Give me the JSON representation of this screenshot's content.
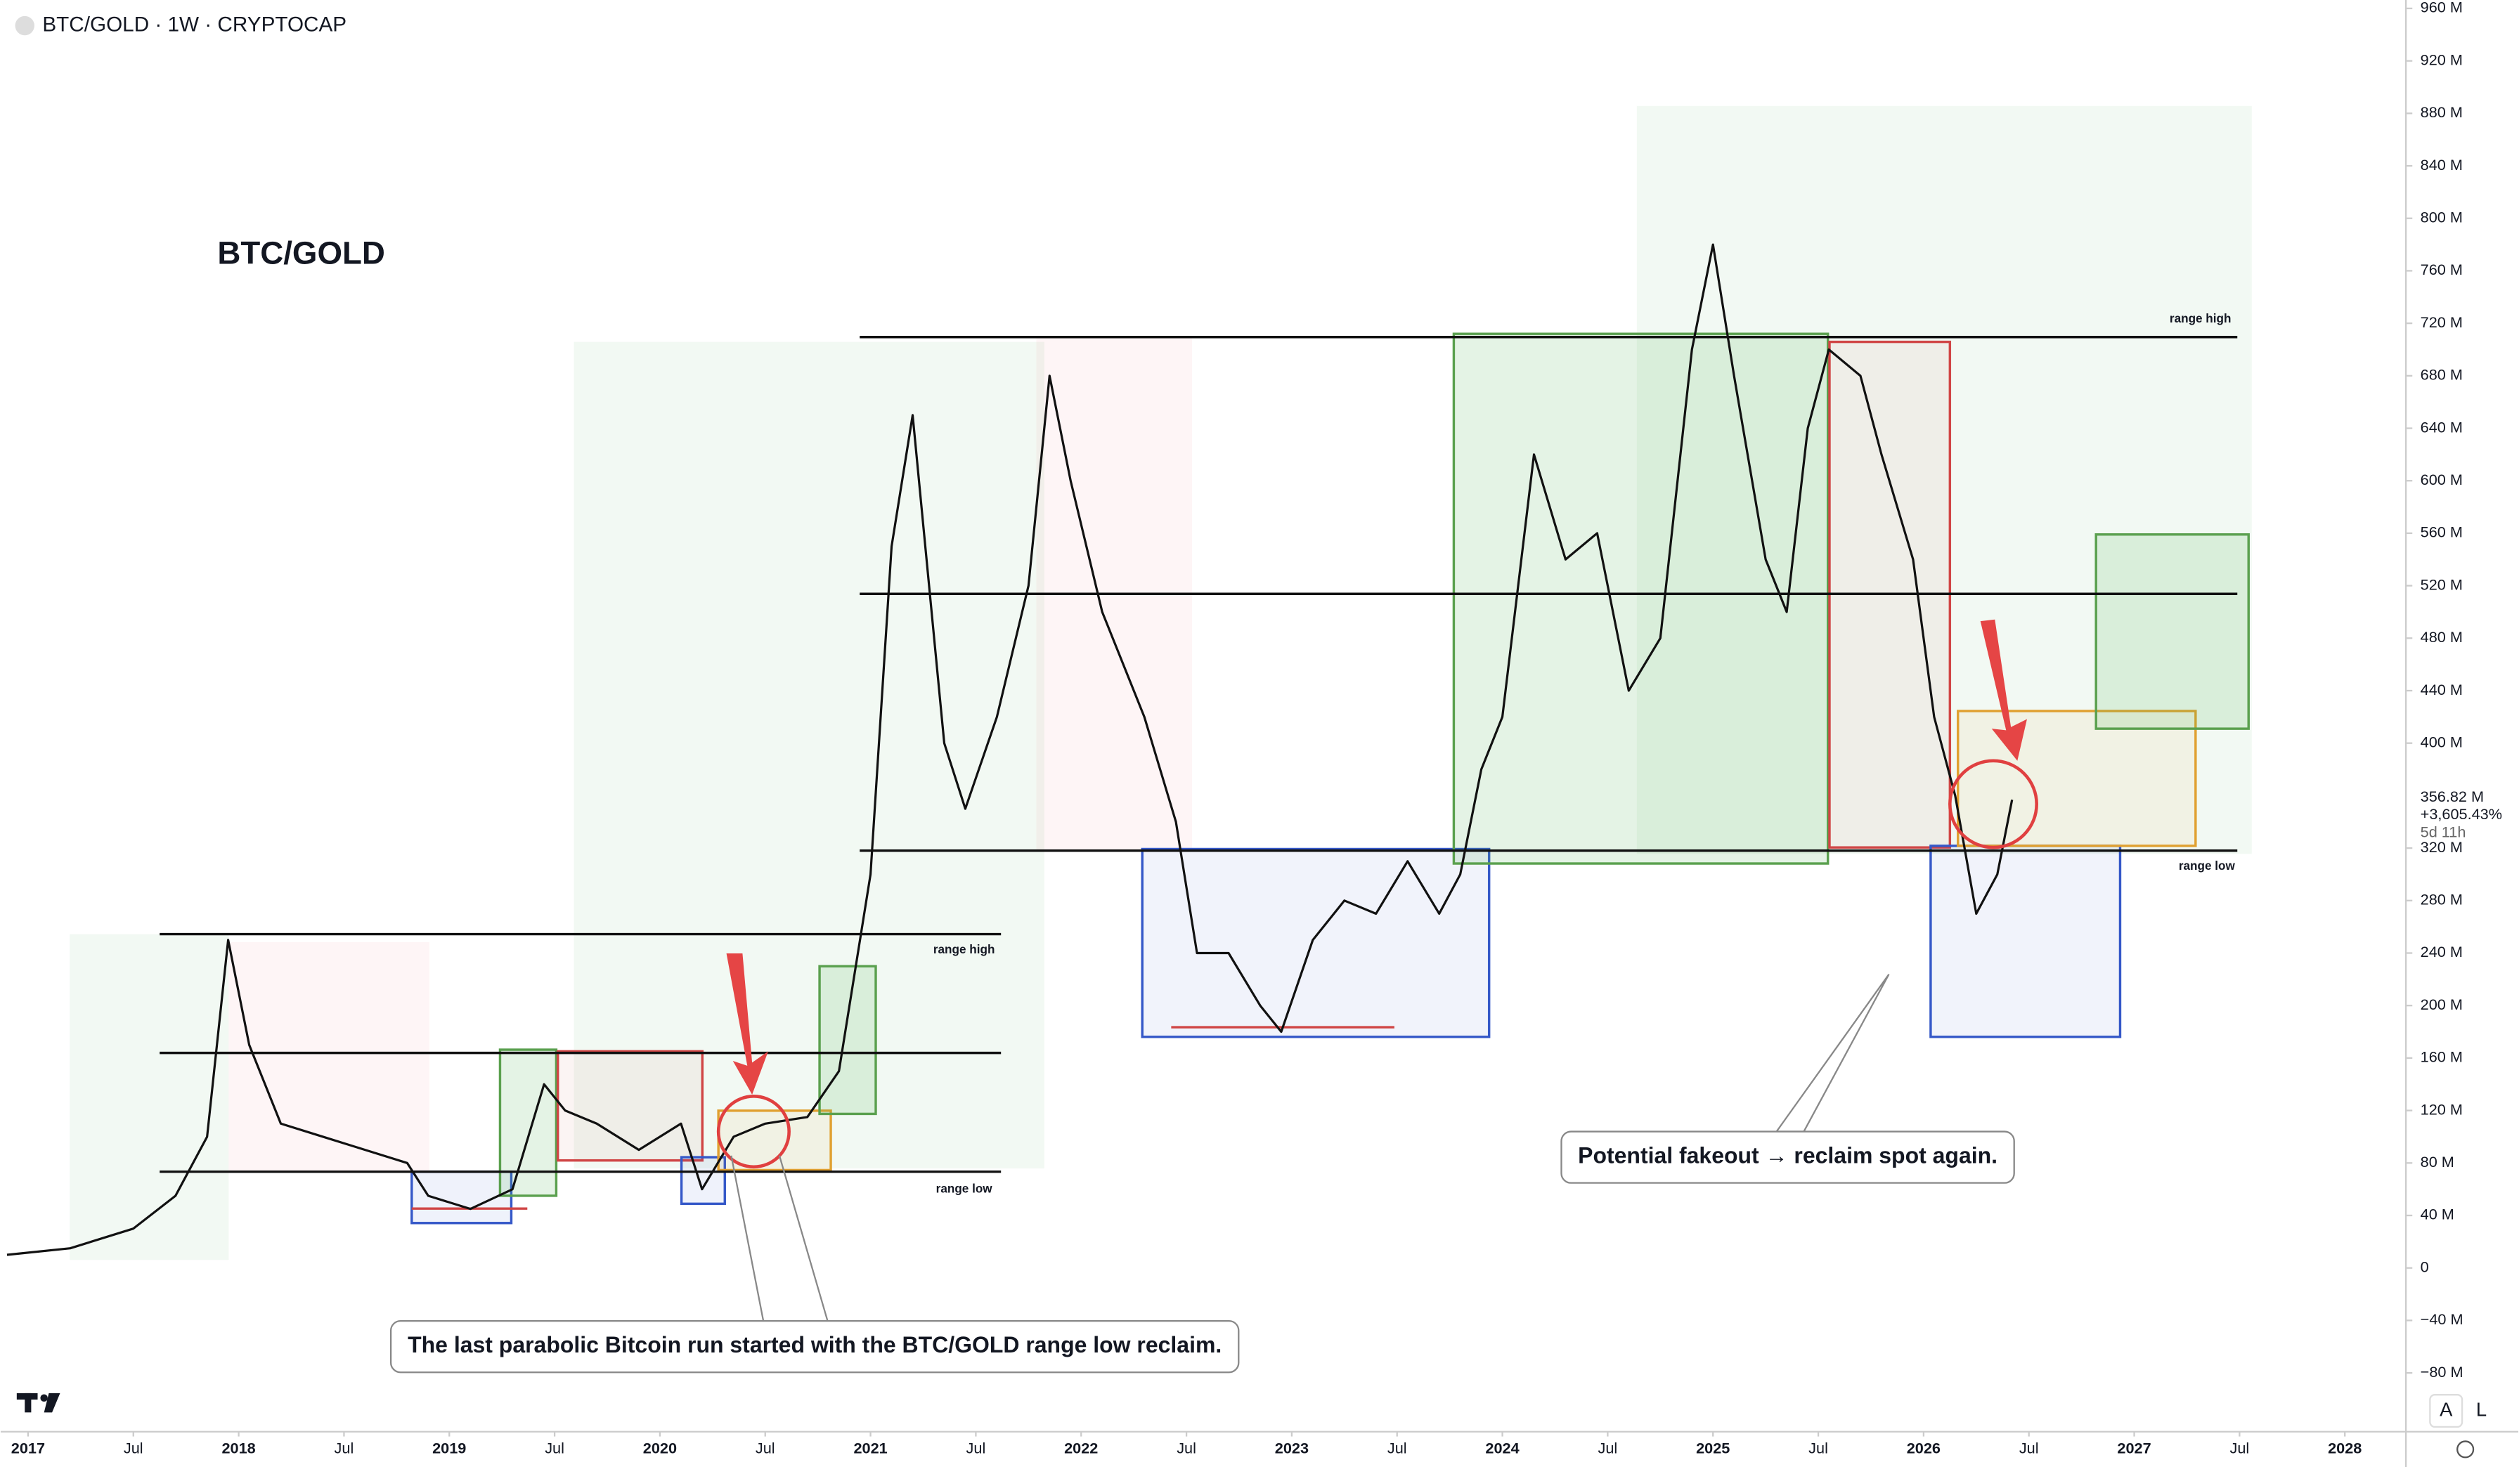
{
  "header": {
    "symbol": "BTC/GOLD · 1W · CRYPTOCAP"
  },
  "chart_data": {
    "type": "line",
    "title": "BTC/GOLD",
    "color": "#111111",
    "x": [
      2016.9,
      2017.2,
      2017.5,
      2017.7,
      2017.85,
      2017.95,
      2018.05,
      2018.2,
      2018.4,
      2018.6,
      2018.8,
      2018.9,
      2019.1,
      2019.3,
      2019.45,
      2019.55,
      2019.7,
      2019.9,
      2020.1,
      2020.2,
      2020.35,
      2020.5,
      2020.7,
      2020.85,
      2021.0,
      2021.1,
      2021.2,
      2021.35,
      2021.45,
      2021.6,
      2021.75,
      2021.85,
      2021.95,
      2022.1,
      2022.3,
      2022.45,
      2022.55,
      2022.7,
      2022.85,
      2022.95,
      2023.1,
      2023.25,
      2023.4,
      2023.55,
      2023.7,
      2023.8,
      2023.9,
      2024.0,
      2024.15,
      2024.3,
      2024.45,
      2024.6,
      2024.75,
      2024.9,
      2025.0,
      2025.1,
      2025.25,
      2025.35,
      2025.45,
      2025.55,
      2025.7,
      2025.8,
      2025.95,
      2026.05,
      2026.15,
      2026.25,
      2026.35,
      2026.42
    ],
    "values": [
      10,
      15,
      30,
      55,
      100,
      250,
      170,
      110,
      100,
      90,
      80,
      55,
      45,
      60,
      140,
      120,
      110,
      90,
      110,
      60,
      100,
      110,
      115,
      150,
      300,
      550,
      650,
      400,
      350,
      420,
      520,
      680,
      600,
      500,
      420,
      340,
      240,
      240,
      200,
      180,
      250,
      280,
      270,
      310,
      270,
      300,
      380,
      420,
      620,
      540,
      560,
      440,
      480,
      700,
      780,
      680,
      540,
      500,
      640,
      700,
      680,
      620,
      540,
      420,
      360,
      270,
      300,
      356.82
    ],
    "value_labels": {
      "last": "356.82 M",
      "change": "+3,605.43%",
      "countdown": "5d 11h"
    },
    "xlim": [
      2016.87,
      2028.29
    ],
    "ylim": [
      -124.8,
      966.4
    ],
    "xticks": [
      2017,
      {
        "value": 2017.5,
        "label": "Jul"
      },
      2018,
      {
        "value": 2018.5,
        "label": "Jul"
      },
      2019,
      {
        "value": 2019.5,
        "label": "Jul"
      },
      2020,
      {
        "value": 2020.5,
        "label": "Jul"
      },
      2021,
      {
        "value": 2021.5,
        "label": "Jul"
      },
      2022,
      {
        "value": 2022.5,
        "label": "Jul"
      },
      2023,
      {
        "value": 2023.5,
        "label": "Jul"
      },
      2024,
      {
        "value": 2024.5,
        "label": "Jul"
      },
      2025,
      {
        "value": 2025.5,
        "label": "Jul"
      },
      2026,
      {
        "value": 2026.5,
        "label": "Jul"
      },
      2027,
      {
        "value": 2027.5,
        "label": "Jul"
      },
      2028
    ],
    "yticks": [
      {
        "value": -80,
        "label": "−80 M"
      },
      {
        "value": -40,
        "label": "−40 M"
      },
      0,
      {
        "value": 40,
        "label": "40 M"
      },
      {
        "value": 80,
        "label": "80 M"
      },
      {
        "value": 120,
        "label": "120 M"
      },
      {
        "value": 160,
        "label": "160 M"
      },
      {
        "value": 200,
        "label": "200 M"
      },
      {
        "value": 240,
        "label": "240 M"
      },
      {
        "value": 280,
        "label": "280 M"
      },
      {
        "value": 320,
        "label": "320 M"
      },
      {
        "value": 400,
        "label": "400 M"
      },
      {
        "value": 440,
        "label": "440 M"
      },
      {
        "value": 480,
        "label": "480 M"
      },
      {
        "value": 520,
        "label": "520 M"
      },
      {
        "value": 560,
        "label": "560 M"
      },
      {
        "value": 600,
        "label": "600 M"
      },
      {
        "value": 640,
        "label": "640 M"
      },
      {
        "value": 680,
        "label": "680 M"
      },
      {
        "value": 720,
        "label": "720 M"
      },
      {
        "value": 760,
        "label": "760 M"
      },
      {
        "value": 800,
        "label": "800 M"
      },
      {
        "value": 840,
        "label": "840 M"
      },
      {
        "value": 880,
        "label": "880 M"
      },
      {
        "value": 920,
        "label": "920 M"
      },
      {
        "value": 960,
        "label": "960 M"
      }
    ],
    "grid": false,
    "annotations": [
      "The last parabolic Bitcoin run started with the BTC/GOLD range low reclaim.",
      "Potential fakeout → reclaim spot again."
    ],
    "level_labels": [
      "range high",
      "range low",
      "range high",
      "range low"
    ]
  },
  "toolbar": {
    "buttons": [
      "A",
      "L"
    ]
  }
}
